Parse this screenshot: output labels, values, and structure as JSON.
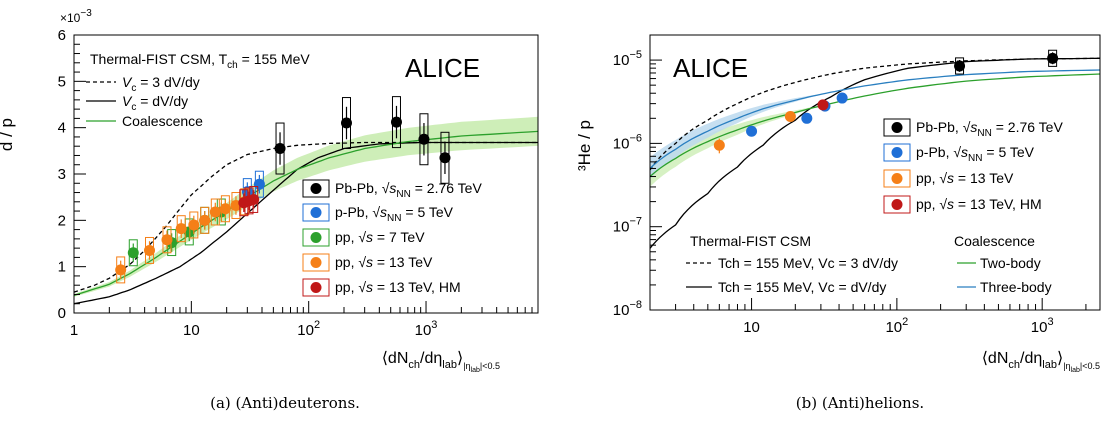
{
  "figure": {
    "caption_a": "(a) (Anti)deuterons.",
    "caption_b": "(b) (Anti)helions."
  },
  "chart_data": [
    {
      "type": "scatter",
      "panel": "a",
      "ylabel": "d / p",
      "xlabel_main": "⟨dN",
      "xlabel_sub1": "ch",
      "xlabel_mid": "/dη",
      "xlabel_sub2": "lab",
      "xlabel_end": "⟩",
      "xlabel_cond": "|η",
      "xlabel_cond_sub": "lab",
      "xlabel_cond_end": "|<0.5",
      "xscale": "log",
      "xlim": [
        1,
        9000
      ],
      "ylim": [
        0,
        6
      ],
      "y_multiplier": "×10",
      "y_multiplier_exp": "−3",
      "yticks": [
        "0",
        "1",
        "2",
        "3",
        "4",
        "5",
        "6"
      ],
      "xticks": [
        "1",
        "10",
        "10",
        "10"
      ],
      "xtick_exps": [
        "",
        "",
        "2",
        "3"
      ],
      "experiment_label": "ALICE",
      "model_title": "Thermal-FIST CSM, T",
      "model_title_sub": "ch",
      "model_title_end": " = 155 MeV",
      "models": [
        {
          "label_pre": "V",
          "label_sub": "c",
          "label_post": " = 3 dV/dy",
          "style": "dashed",
          "color": "#000000",
          "x": [
            1,
            1.5,
            2,
            3,
            4,
            6,
            8,
            10,
            15,
            20,
            30,
            50,
            80,
            150,
            300,
            700,
            2000,
            9000
          ],
          "y": [
            0.45,
            0.6,
            0.75,
            1.05,
            1.35,
            1.85,
            2.25,
            2.55,
            2.95,
            3.2,
            3.42,
            3.55,
            3.62,
            3.66,
            3.68,
            3.68,
            3.68,
            3.68
          ]
        },
        {
          "label_pre": "V",
          "label_sub": "c",
          "label_post": " = dV/dy",
          "style": "solid",
          "color": "#000000",
          "x": [
            1,
            2,
            3,
            5,
            8,
            12,
            20,
            30,
            50,
            80,
            120,
            200,
            400,
            900,
            3000,
            9000
          ],
          "y": [
            0.2,
            0.35,
            0.5,
            0.75,
            1.0,
            1.3,
            1.75,
            2.15,
            2.65,
            3.1,
            3.35,
            3.55,
            3.65,
            3.68,
            3.68,
            3.68
          ]
        },
        {
          "label_pre": "Coalescence",
          "label_sub": "",
          "label_post": "",
          "style": "solid",
          "color": "#2ca02c",
          "x": [
            1,
            2,
            3,
            5,
            8,
            12,
            20,
            30,
            50,
            80,
            150,
            300,
            700,
            2000,
            9000
          ],
          "y": [
            0.38,
            0.62,
            0.85,
            1.2,
            1.55,
            1.85,
            2.2,
            2.5,
            2.85,
            3.1,
            3.35,
            3.55,
            3.7,
            3.82,
            3.92
          ]
        }
      ],
      "series": [
        {
          "system": "Pb-Pb, ",
          "energy_var": "√s",
          "energy_sub": "NN",
          "energy_post": " = 2.76 TeV",
          "color": "#000000",
          "x": [
            57,
            210,
            560,
            960,
            1450
          ],
          "y": [
            3.55,
            4.1,
            4.12,
            3.75,
            3.35
          ]
        },
        {
          "system": "p-Pb, ",
          "energy_var": "√s",
          "energy_sub": "NN",
          "energy_post": " = 5 TeV",
          "color": "#1f6fd6",
          "x": [
            30,
            38
          ],
          "y": [
            2.62,
            2.78
          ]
        },
        {
          "system": "pp, ",
          "energy_var": "√s",
          "energy_sub": "",
          "energy_post": " = 7 TeV",
          "color": "#2ca02c",
          "x": [
            3.2,
            6.8,
            9.6,
            13,
            18
          ],
          "y": [
            1.3,
            1.52,
            1.75,
            2.0,
            2.18
          ]
        },
        {
          "system": "pp, ",
          "energy_var": "√s",
          "energy_sub": "",
          "energy_post": " = 13 TeV",
          "color": "#f57f17",
          "x": [
            2.5,
            4.4,
            6.2,
            8.2,
            10.5,
            13,
            16,
            19.5,
            24,
            28.5
          ],
          "y": [
            0.93,
            1.35,
            1.58,
            1.82,
            1.9,
            2.0,
            2.18,
            2.25,
            2.32,
            2.4
          ]
        },
        {
          "system": "pp, ",
          "energy_var": "√s",
          "energy_sub": "",
          "energy_post": " = 13 TeV, HM",
          "color": "#c01818",
          "x": [
            28,
            31,
            34
          ],
          "y": [
            2.38,
            2.42,
            2.45
          ]
        }
      ]
    },
    {
      "type": "scatter",
      "panel": "b",
      "ylabel": "³He / p",
      "xscale": "log",
      "yscale": "log",
      "xlim": [
        2,
        2500
      ],
      "ylim": [
        1e-08,
        2e-05
      ],
      "yticks": [
        "10",
        "10",
        "10",
        "10"
      ],
      "ytick_exps": [
        "−8",
        "−7",
        "−6",
        "−5"
      ],
      "xticks": [
        "10",
        "10",
        "10"
      ],
      "xtick_exps": [
        "",
        "2",
        "3"
      ],
      "experiment_label": "ALICE",
      "model_title": "Thermal-FIST CSM",
      "coal_title": "Coalescence",
      "models": [
        {
          "label": "T_ch = 155 MeV, V_c = 3 dV/dy",
          "style": "dashed",
          "color": "#000000",
          "x": [
            2,
            3,
            5,
            8,
            12,
            20,
            35,
            60,
            120,
            300,
            800,
            2500
          ],
          "y": [
            4.8e-07,
            1e-06,
            1.9e-06,
            3e-06,
            4.1e-06,
            5.4e-06,
            6.8e-06,
            8e-06,
            9e-06,
            9.8e-06,
            1.03e-05,
            1.05e-05
          ]
        },
        {
          "label": "T_ch = 155 MeV, V_c = dV/dy",
          "style": "solid",
          "color": "#000000",
          "x": [
            2,
            3,
            5,
            8,
            12,
            20,
            35,
            60,
            120,
            300,
            800,
            2500
          ],
          "y": [
            5.5e-08,
            1.05e-07,
            2.5e-07,
            5.2e-07,
            9.5e-07,
            1.9e-06,
            3.6e-06,
            5.8e-06,
            8e-06,
            9.6e-06,
            1.03e-05,
            1.05e-05
          ]
        },
        {
          "label": "Two-body",
          "style": "solid",
          "color": "#2ca02c",
          "x": [
            2,
            3,
            5,
            8,
            12,
            20,
            35,
            60,
            120,
            300,
            800,
            2500
          ],
          "y": [
            4e-07,
            6.6e-07,
            1.05e-06,
            1.45e-06,
            1.85e-06,
            2.35e-06,
            3e-06,
            3.7e-06,
            4.6e-06,
            5.6e-06,
            6.3e-06,
            6.8e-06
          ]
        },
        {
          "label": "Three-body",
          "style": "solid",
          "color": "#2a7fc0",
          "x": [
            2,
            3,
            5,
            8,
            12,
            20,
            35,
            60,
            120,
            300,
            800,
            2500
          ],
          "y": [
            5e-07,
            8.5e-07,
            1.4e-06,
            2e-06,
            2.6e-06,
            3.3e-06,
            4.1e-06,
            4.9e-06,
            5.8e-06,
            6.7e-06,
            7.3e-06,
            7.6e-06
          ]
        }
      ],
      "series": [
        {
          "system": "Pb-Pb, ",
          "energy_var": "√s",
          "energy_sub": "NN",
          "energy_post": " = 2.76 TeV",
          "color": "#000000",
          "x": [
            270,
            1180
          ],
          "y": [
            8.5e-06,
            1.05e-05
          ]
        },
        {
          "system": "p-Pb, ",
          "energy_var": "√s",
          "energy_sub": "NN",
          "energy_post": " = 5 TeV",
          "color": "#1f6fd6",
          "x": [
            10,
            24,
            32,
            42
          ],
          "y": [
            1.4e-06,
            2e-06,
            2.8e-06,
            3.5e-06
          ]
        },
        {
          "system": "pp, ",
          "energy_var": "√s",
          "energy_sub": "",
          "energy_post": " = 13 TeV",
          "color": "#f57f17",
          "x": [
            6,
            18.5
          ],
          "y": [
            9.5e-07,
            2.1e-06
          ]
        },
        {
          "system": "pp, ",
          "energy_var": "√s",
          "energy_sub": "",
          "energy_post": " = 13 TeV, HM",
          "color": "#c01818",
          "x": [
            31
          ],
          "y": [
            2.9e-06
          ]
        }
      ]
    }
  ]
}
